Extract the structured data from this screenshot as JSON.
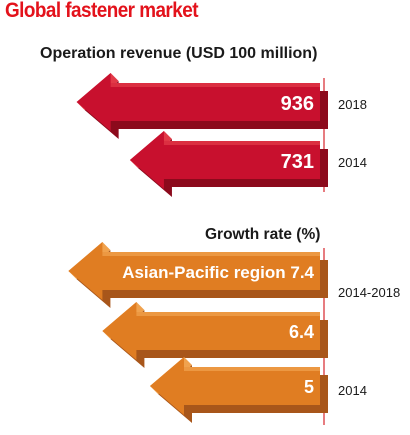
{
  "title": "Global fastener market",
  "colors": {
    "title": "#e3121b",
    "red_face": "#c8102e",
    "red_top": "#e23a48",
    "red_side": "#8c0a1c",
    "orange_face": "#e07d22",
    "orange_top": "#f0a24e",
    "orange_side": "#a8561a",
    "divider": "#d7262c",
    "side_text": "#1a1a1a"
  },
  "chart_data": [
    {
      "type": "bar",
      "orientation": "horizontal",
      "title": "Operation revenue  (USD 100 million)",
      "categories": [
        "2018",
        "2014"
      ],
      "values": [
        936,
        731
      ],
      "labels": [
        "936",
        "731"
      ],
      "color": "red"
    },
    {
      "type": "bar",
      "orientation": "horizontal",
      "title": "Growth rate (%)",
      "categories": [
        "Asian-Pacific region",
        "",
        ""
      ],
      "values": [
        7.4,
        6.4,
        5
      ],
      "labels": [
        "Asian-Pacific region 7.4",
        "6.4",
        "5"
      ],
      "side_labels": [
        "",
        "2014-2018",
        "2014"
      ],
      "color": "orange"
    }
  ]
}
